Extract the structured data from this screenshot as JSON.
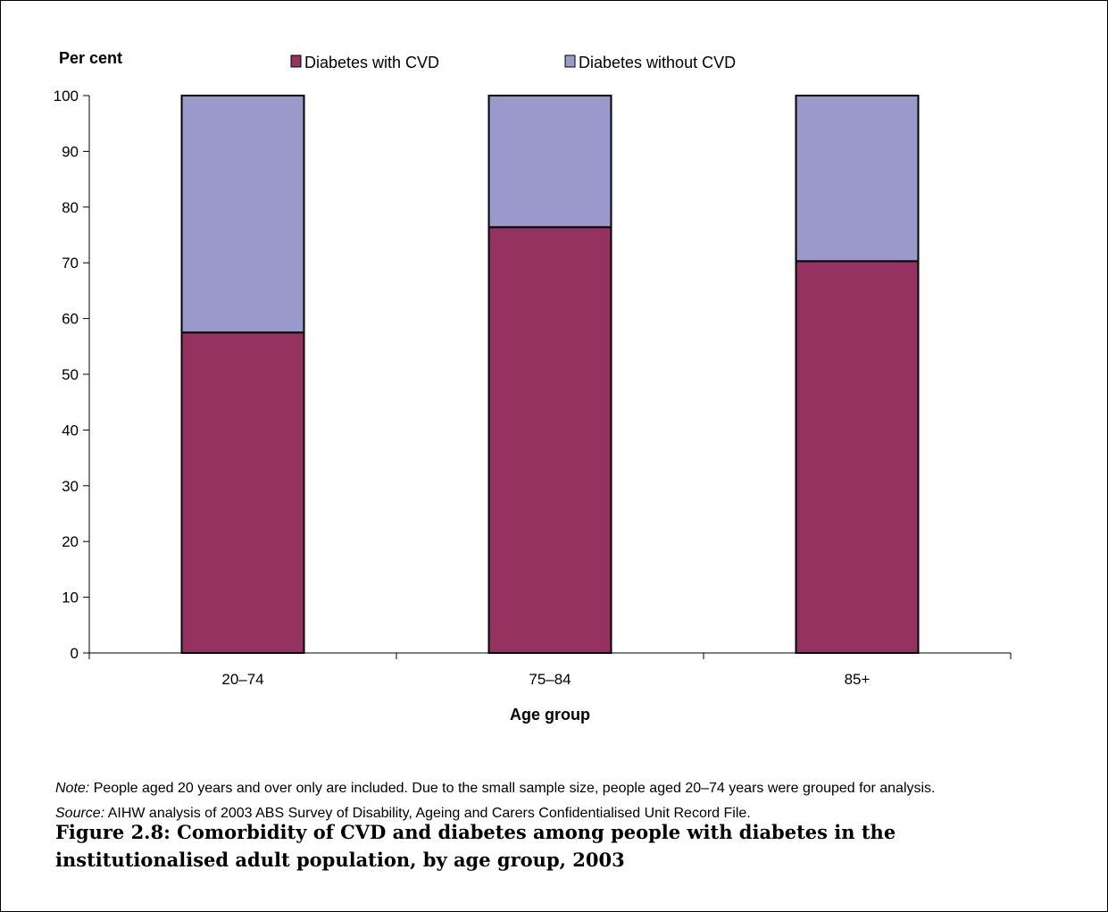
{
  "chart_data": {
    "type": "bar",
    "stacked": true,
    "categories": [
      "20–74",
      "75–84",
      "85+"
    ],
    "series": [
      {
        "name": "Diabetes with CVD",
        "values": [
          57.5,
          76.4,
          70.3
        ],
        "color": "#953260"
      },
      {
        "name": "Diabetes without CVD",
        "values": [
          42.5,
          23.6,
          29.7
        ],
        "color": "#9999cc"
      }
    ],
    "ylabel": "Per cent",
    "xlabel": "Age group",
    "ylim": [
      0,
      100
    ],
    "yticks": [
      0,
      10,
      20,
      30,
      40,
      50,
      60,
      70,
      80,
      90,
      100
    ],
    "grid": false,
    "legend_position": "top"
  },
  "notes": {
    "note_label": "Note:",
    "note_text": " People aged 20 years and over only are included. Due to the small sample size, people aged 20–74 years were grouped for analysis.",
    "source_label": "Source:",
    "source_text": " AIHW analysis of 2003 ABS Survey of Disability, Ageing and Carers Confidentialised Unit Record File."
  },
  "caption": "Figure 2.8: Comorbidity of CVD and diabetes among people with diabetes in the institutionalised adult population, by age group, 2003"
}
